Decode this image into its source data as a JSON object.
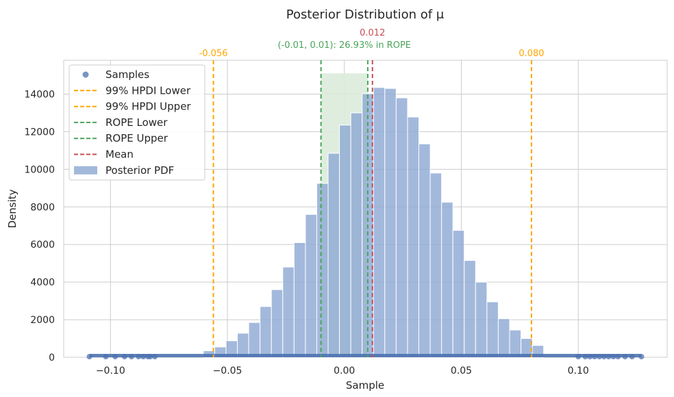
{
  "chart_data": {
    "type": "bar",
    "title": "Posterior Distribution of  μ",
    "xlabel": "Sample",
    "ylabel": "Density",
    "xlim": [
      -0.12,
      0.138
    ],
    "ylim": [
      0,
      15800
    ],
    "x_ticks": [
      -0.1,
      -0.05,
      0.0,
      0.05,
      0.1
    ],
    "x_tick_labels": [
      "−0.10",
      "−0.05",
      "0.00",
      "0.05",
      "0.10"
    ],
    "y_ticks": [
      0,
      2000,
      4000,
      6000,
      8000,
      10000,
      12000,
      14000
    ],
    "y_tick_labels": [
      "0",
      "2000",
      "4000",
      "6000",
      "8000",
      "10000",
      "12000",
      "14000"
    ],
    "grid": true,
    "legend_position": "top-left",
    "histogram": {
      "name": "Posterior PDF",
      "color": "#8faad4",
      "bin_width": 0.00485,
      "bin_starts": [
        -0.0603,
        -0.05545,
        -0.0506,
        -0.04575,
        -0.0409,
        -0.03605,
        -0.0312,
        -0.02635,
        -0.0215,
        -0.01665,
        -0.0118,
        -0.00695,
        -0.0021,
        0.00275,
        0.0076,
        0.01245,
        0.0173,
        0.02215,
        0.027,
        0.03185,
        0.0367,
        0.04155,
        0.0464,
        0.05125,
        0.0561,
        0.06095,
        0.0658,
        0.07065,
        0.0755,
        0.08035
      ],
      "values": [
        350,
        550,
        880,
        1280,
        1850,
        2700,
        3600,
        4800,
        6100,
        7600,
        9250,
        10850,
        12350,
        13000,
        14020,
        14350,
        14300,
        13800,
        12780,
        11350,
        9800,
        8250,
        6750,
        5150,
        4000,
        2950,
        2050,
        1450,
        1000,
        630
      ]
    },
    "rope_region": {
      "x": [
        -0.01,
        0.01
      ],
      "height": 15100,
      "color": "#dcebdc"
    },
    "samples": {
      "name": "Samples",
      "color": "#4c72b0",
      "x_range": [
        -0.109,
        0.127
      ],
      "outliers": [
        -0.109,
        -0.102,
        -0.098,
        -0.094,
        -0.091,
        -0.088,
        -0.086,
        -0.084,
        -0.083,
        -0.081,
        0.1,
        0.103,
        0.105,
        0.107,
        0.109,
        0.111,
        0.113,
        0.115,
        0.117,
        0.12,
        0.123,
        0.127
      ]
    },
    "lines": [
      {
        "name": "99% HPDI Lower",
        "x": -0.056,
        "color": "#ffa500",
        "label": "-0.056"
      },
      {
        "name": "99% HPDI Upper",
        "x": 0.08,
        "color": "#ffa500",
        "label": "0.080"
      },
      {
        "name": "ROPE Lower",
        "x": -0.01,
        "color": "#4aa459",
        "label": ""
      },
      {
        "name": "ROPE Upper",
        "x": 0.01,
        "color": "#4aa459",
        "label": ""
      },
      {
        "name": "Mean",
        "x": 0.012,
        "color": "#c44e52",
        "label": "0.012"
      }
    ],
    "rope_annotation": {
      "text": "(-0.01, 0.01): 26.93% in ROPE",
      "color": "#4aa459"
    },
    "legend": [
      "Samples",
      "99% HPDI Lower",
      "99% HPDI Upper",
      "ROPE Lower",
      "ROPE Upper",
      "Mean",
      "Posterior PDF"
    ]
  }
}
